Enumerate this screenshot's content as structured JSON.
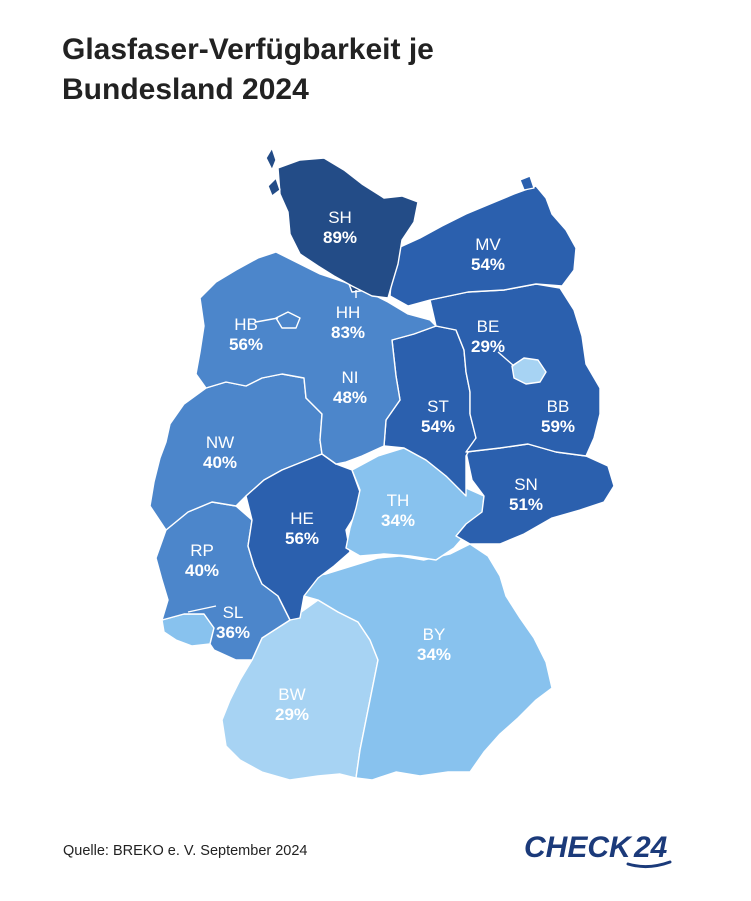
{
  "title": "Glasfaser-Verfügbarkeit je Bundesland 2024",
  "source": "Quelle: BREKO e. V. September 2024",
  "logo": {
    "name": "CHECK24",
    "text_main": "CHECK",
    "text_num": "24",
    "color": "#1b3a7a"
  },
  "colors": {
    "darkest": "#234c87",
    "dark": "#2b60ae",
    "mid": "#4c86cb",
    "light": "#88c2ee",
    "lightest": "#a7d3f3",
    "label_light": "#ffffff"
  },
  "states": [
    {
      "id": "SH",
      "code": "SH",
      "value": "89%"
    },
    {
      "id": "HH",
      "code": "HH",
      "value": "83%"
    },
    {
      "id": "MV",
      "code": "MV",
      "value": "54%"
    },
    {
      "id": "HB",
      "code": "HB",
      "value": "56%"
    },
    {
      "id": "BE",
      "code": "BE",
      "value": "29%"
    },
    {
      "id": "NI",
      "code": "NI",
      "value": "48%"
    },
    {
      "id": "ST",
      "code": "ST",
      "value": "54%"
    },
    {
      "id": "BB",
      "code": "BB",
      "value": "59%"
    },
    {
      "id": "NW",
      "code": "NW",
      "value": "40%"
    },
    {
      "id": "SN",
      "code": "SN",
      "value": "51%"
    },
    {
      "id": "TH",
      "code": "TH",
      "value": "34%"
    },
    {
      "id": "HE",
      "code": "HE",
      "value": "56%"
    },
    {
      "id": "RP",
      "code": "RP",
      "value": "40%"
    },
    {
      "id": "SL",
      "code": "SL",
      "value": "36%"
    },
    {
      "id": "BY",
      "code": "BY",
      "value": "34%"
    },
    {
      "id": "BW",
      "code": "BW",
      "value": "29%"
    }
  ]
}
